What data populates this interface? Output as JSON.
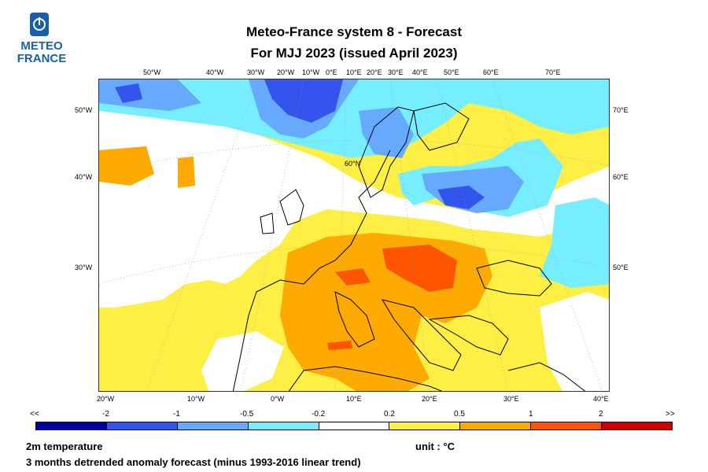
{
  "logo": {
    "line1": "METEO",
    "line2": "FRANCE"
  },
  "title": {
    "line1": "Meteo-France system 8  -  Forecast",
    "line2": "For MJJ 2023      (issued April 2023)"
  },
  "map": {
    "parallel_label": "60°N",
    "top_lon_labels": [
      "50°W",
      "40°W",
      "30°W",
      "20°W",
      "10°W",
      "0°E",
      "10°E",
      "20°E",
      "30°E",
      "40°E",
      "50°E",
      "60°E",
      "70°E"
    ],
    "bottom_lon_labels": [
      "20°W",
      "10°W",
      "0°W",
      "10°E",
      "20°E",
      "30°E",
      "40°E"
    ],
    "left_labels": [
      "50°W",
      "40°W",
      "30°W"
    ],
    "right_labels": [
      "70°E",
      "60°E",
      "50°E"
    ],
    "colors": {
      "sea_white": "#ffffff",
      "cold": "#6699ff"
    }
  },
  "colorbar": {
    "ticks": [
      "<<",
      "-2",
      "-1",
      "-0.5",
      "-0.2",
      "0.2",
      "0.5",
      "1",
      "2",
      ">>"
    ],
    "colors": [
      "#0000a0",
      "#3355ee",
      "#66aaff",
      "#77eeff",
      "#ffffff",
      "#ffee44",
      "#ffaa00",
      "#ff5500",
      "#cc0000"
    ]
  },
  "footer": {
    "variable": "2m temperature",
    "unit": "unit : °C",
    "description": "3 months detrended anomaly forecast (minus 1993-2016 linear trend)"
  }
}
